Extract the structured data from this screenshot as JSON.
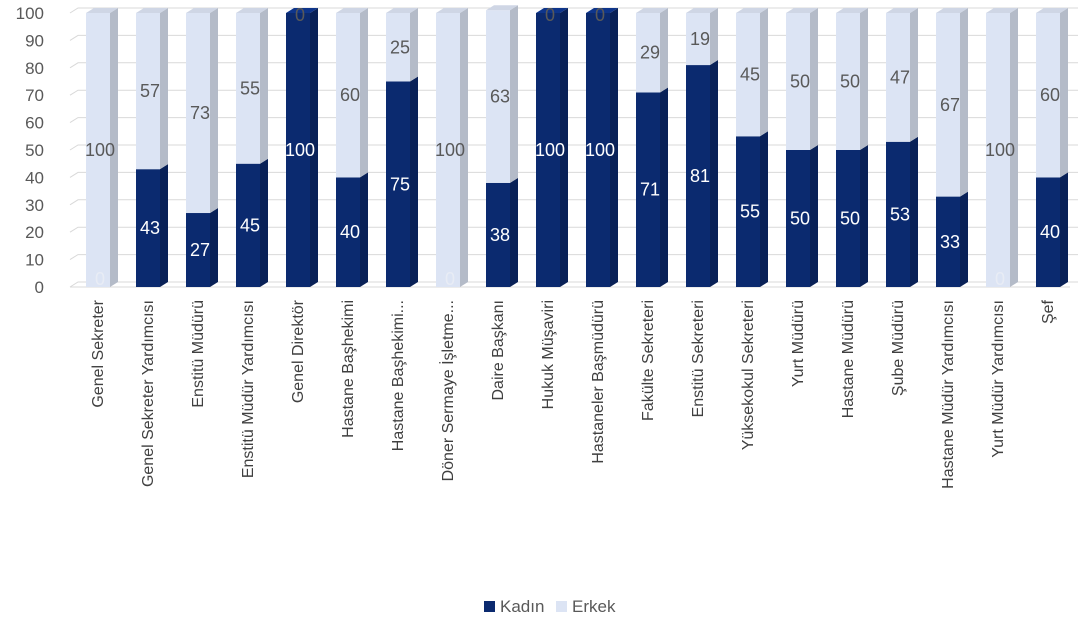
{
  "chart_data": {
    "type": "bar",
    "stacked": true,
    "percent_stacked": true,
    "style": "3d-column",
    "categories": [
      "Genel Sekreter",
      "Genel Sekreter Yardımcısı",
      "Enstitü Müdürü",
      "Enstitü Müdür Yardımcısı",
      "Genel Direktör",
      "Hastane Başhekimi",
      "Hastane Başhekimi...",
      "Döner Sermaye İşletme...",
      "Daire Başkanı",
      "Hukuk Müşaviri",
      "Hastaneler Başmüdürü",
      "Fakülte Sekreteri",
      "Enstitü Sekreteri",
      "Yüksekokul Sekreteri",
      "Yurt Müdürü",
      "Hastane Müdürü",
      "Şube Müdürü",
      "Hastane Müdür Yardımcısı",
      "Yurt Müdür Yardımcısı",
      "Şef"
    ],
    "series": [
      {
        "name": "Kadın",
        "color": "#0b2a6f",
        "values": [
          0,
          43,
          27,
          45,
          100,
          40,
          75,
          0,
          38,
          100,
          100,
          71,
          81,
          55,
          50,
          50,
          53,
          33,
          0,
          40
        ]
      },
      {
        "name": "Erkek",
        "color": "#dce4f4",
        "values": [
          100,
          57,
          73,
          55,
          0,
          60,
          25,
          100,
          63,
          0,
          0,
          29,
          19,
          45,
          50,
          50,
          47,
          67,
          100,
          60
        ]
      }
    ],
    "ylim": [
      0,
      100
    ],
    "yticks": [
      0,
      10,
      20,
      30,
      40,
      50,
      60,
      70,
      80,
      90,
      100
    ],
    "grid": true,
    "legend": "bottom-center",
    "title": "",
    "xlabel": "",
    "ylabel": ""
  }
}
